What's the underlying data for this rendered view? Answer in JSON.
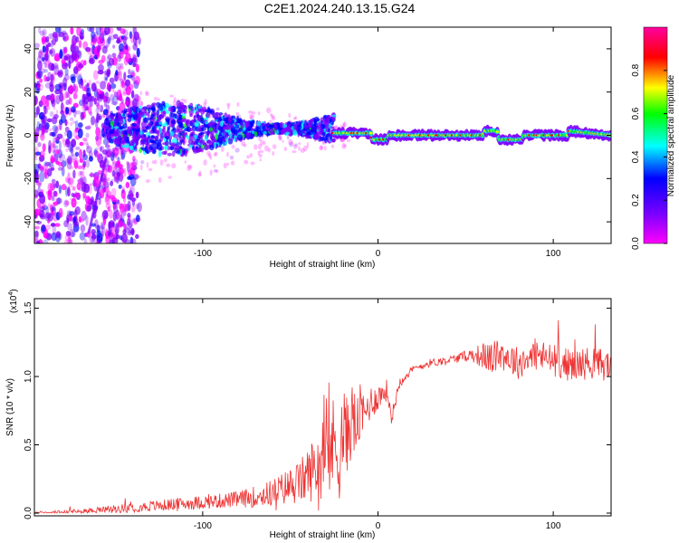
{
  "title": "C2E1.2024.240.13.15.G24",
  "chart_data": [
    {
      "type": "heatmap",
      "name": "spectrogram",
      "xlabel": "Height of straight line (km)",
      "ylabel": "Frequency (Hz)",
      "xlim": [
        -196,
        133
      ],
      "ylim": [
        -50,
        50
      ],
      "xticks": [
        -100,
        0,
        100
      ],
      "xtick_labels": [
        "-100",
        "0",
        "100"
      ],
      "yticks": [
        -40,
        -20,
        0,
        20,
        40
      ],
      "ytick_labels": [
        "-40",
        "-20",
        "0",
        "20",
        "40"
      ],
      "ridge": [
        {
          "x": -25,
          "y": 1
        },
        {
          "x": -4,
          "y": 1
        },
        {
          "x": -3,
          "y": -2
        },
        {
          "x": 5,
          "y": -2
        },
        {
          "x": 6,
          "y": 0
        },
        {
          "x": 60,
          "y": 0
        },
        {
          "x": 61,
          "y": 2
        },
        {
          "x": 68,
          "y": 2
        },
        {
          "x": 69,
          "y": -2
        },
        {
          "x": 82,
          "y": -2
        },
        {
          "x": 83,
          "y": 0
        },
        {
          "x": 108,
          "y": 0
        },
        {
          "x": 109,
          "y": 2
        },
        {
          "x": 133,
          "y": 0
        }
      ],
      "colorbar": {
        "label": "Normalized spectral amplitude",
        "range": [
          0,
          1
        ],
        "ticks": [
          0.0,
          0.2,
          0.4,
          0.6,
          0.8
        ],
        "tick_labels": [
          "0.0",
          "0.2",
          "0.4",
          "0.6",
          "0.8"
        ],
        "colors": [
          "#ff00ff",
          "#8000ff",
          "#0000ff",
          "#00ffff",
          "#00ff00",
          "#ffff00",
          "#ff0000",
          "#ff00a0"
        ]
      }
    },
    {
      "type": "line",
      "name": "snr",
      "xlabel": "Height of straight line (km)",
      "ylabel": "SNR (10 * v/v)",
      "multiplier": "(x10",
      "multiplier_exp": "4",
      "multiplier_close": ")",
      "xlim": [
        -196,
        133
      ],
      "ylim": [
        -0.02,
        1.57
      ],
      "xticks": [
        -100,
        0,
        100
      ],
      "xtick_labels": [
        "-100",
        "0",
        "100"
      ],
      "yticks": [
        0.0,
        0.5,
        1.0,
        1.5
      ],
      "ytick_labels": [
        "0.0",
        "0.5",
        "1.0",
        "1.5"
      ],
      "color": "#ee3333",
      "x": [
        -196,
        -170,
        -150,
        -130,
        -100,
        -80,
        -70,
        -60,
        -50,
        -45,
        -40,
        -35,
        -30,
        -25,
        -22,
        -20,
        -18,
        -15,
        -12,
        -10,
        -8,
        -5,
        0,
        5,
        8,
        12,
        15,
        20,
        25,
        30,
        40,
        50,
        55,
        60,
        65,
        70,
        80,
        90,
        100,
        110,
        120,
        133
      ],
      "values": [
        0.0,
        0.01,
        0.03,
        0.05,
        0.08,
        0.1,
        0.12,
        0.15,
        0.2,
        0.22,
        0.28,
        0.35,
        0.4,
        0.5,
        0.45,
        0.6,
        0.55,
        0.7,
        0.62,
        0.75,
        0.7,
        0.8,
        0.85,
        0.9,
        0.7,
        0.95,
        1.0,
        1.05,
        1.08,
        1.1,
        1.12,
        1.15,
        1.16,
        1.15,
        1.13,
        1.17,
        1.1,
        1.16,
        1.12,
        1.08,
        1.1,
        1.08
      ],
      "noise": [
        0.01,
        0.02,
        0.03,
        0.04,
        0.05,
        0.06,
        0.08,
        0.1,
        0.14,
        0.16,
        0.2,
        0.26,
        0.3,
        0.38,
        0.36,
        0.35,
        0.3,
        0.28,
        0.25,
        0.2,
        0.18,
        0.14,
        0.1,
        0.08,
        0.06,
        0.05,
        0.04,
        0.03,
        0.03,
        0.03,
        0.03,
        0.04,
        0.06,
        0.1,
        0.12,
        0.12,
        0.12,
        0.12,
        0.12,
        0.12,
        0.12,
        0.12
      ]
    }
  ]
}
